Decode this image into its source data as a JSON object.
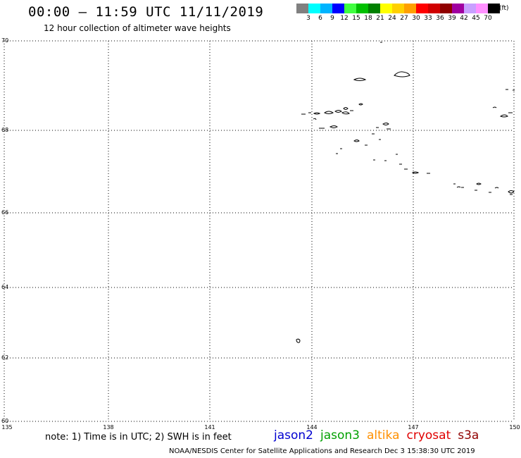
{
  "header": {
    "title": "00:00 – 11:59 UTC 11/11/2019",
    "subtitle": "12 hour collection of altimeter wave heights"
  },
  "legend": {
    "unit": "(ft)",
    "bins": [
      {
        "label": "3",
        "color": "#808080"
      },
      {
        "label": "6",
        "color": "#00ffff"
      },
      {
        "label": "9",
        "color": "#00b4ff"
      },
      {
        "label": "12",
        "color": "#0000ff"
      },
      {
        "label": "15",
        "color": "#40ff40"
      },
      {
        "label": "18",
        "color": "#00c000"
      },
      {
        "label": "21",
        "color": "#008000"
      },
      {
        "label": "24",
        "color": "#ffff00"
      },
      {
        "label": "27",
        "color": "#ffd000"
      },
      {
        "label": "30",
        "color": "#ffa000"
      },
      {
        "label": "33",
        "color": "#ff0000"
      },
      {
        "label": "36",
        "color": "#d00000"
      },
      {
        "label": "39",
        "color": "#900000"
      },
      {
        "label": "42",
        "color": "#a000a0"
      },
      {
        "label": "45",
        "color": "#c8a0ff"
      },
      {
        "label": "70",
        "color": "#ff90ff"
      },
      {
        "label": "",
        "color": "#000000"
      }
    ]
  },
  "map": {
    "lat_labels": [
      "70",
      "68",
      "66",
      "64",
      "62",
      "60"
    ],
    "lon_labels": [
      "135",
      "138",
      "141",
      "144",
      "147",
      "150"
    ],
    "lat_range": [
      60,
      70
    ],
    "lon_range": [
      135,
      150
    ],
    "grid": "dotted"
  },
  "footer": {
    "note": "note: 1) Time is in UTC; 2) SWH is in feet",
    "satellites": [
      {
        "name": "jason2",
        "color": "#0000d0"
      },
      {
        "name": "jason3",
        "color": "#00a000"
      },
      {
        "name": "altika",
        "color": "#ff9000"
      },
      {
        "name": "cryosat",
        "color": "#e00000"
      },
      {
        "name": "s3a",
        "color": "#900000"
      }
    ],
    "credit": "NOAA/NESDIS Center for Satellite Applications and Research   Dec  3 15:38:30 UTC 2019"
  }
}
